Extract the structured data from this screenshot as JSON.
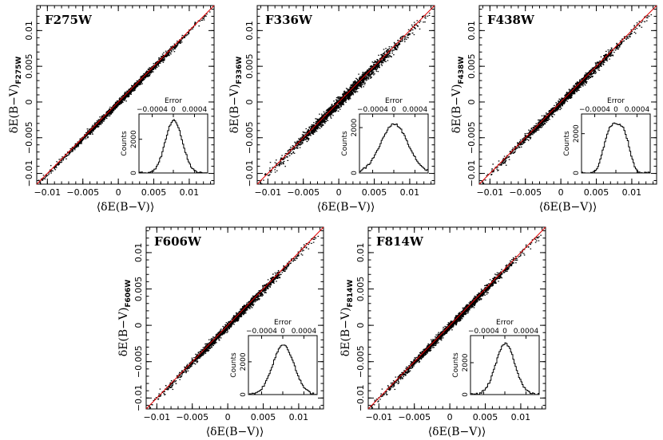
{
  "chart_data": [
    {
      "type": "scatter",
      "filter": "F275W",
      "xlabel": "⟨δE(B−V)⟩",
      "ylabel_main": "δE(B−V)",
      "ylabel_sub": "F275W",
      "xlim": [
        -0.0115,
        0.0135
      ],
      "ylim": [
        -0.0115,
        0.0135
      ],
      "xticks": [
        {
          "v": -0.01,
          "label": "−0.01"
        },
        {
          "v": -0.005,
          "label": "−0.005"
        },
        {
          "v": 0,
          "label": "0"
        },
        {
          "v": 0.005,
          "label": "0.005"
        },
        {
          "v": 0.01,
          "label": "0.01"
        }
      ],
      "yticks": [
        {
          "v": -0.01,
          "label": "−0.01"
        },
        {
          "v": -0.005,
          "label": "−0.005"
        },
        {
          "v": 0,
          "label": "0"
        },
        {
          "v": 0.005,
          "label": "0.005"
        },
        {
          "v": 0.01,
          "label": "0.01"
        }
      ],
      "scatter_sigma": 0.00018,
      "reference_line": {
        "slope": 1,
        "intercept": 0,
        "color": "#e00000"
      },
      "inset": {
        "type": "histogram",
        "title": "Error",
        "xlabel": "Error",
        "ylabel": "Counts",
        "xlim": [
          -0.00065,
          0.00065
        ],
        "ylim": [
          0,
          3500
        ],
        "xticks": [
          {
            "v": -0.0004,
            "label": "−0.0004"
          },
          {
            "v": 0,
            "label": "0"
          },
          {
            "v": 0.0004,
            "label": "0.0004"
          }
        ],
        "yticks": [
          {
            "v": 0,
            "label": "0"
          },
          {
            "v": 2000,
            "label": "2000"
          }
        ],
        "peak": 3150,
        "sigma": 0.00016,
        "shape": "gaussian"
      }
    },
    {
      "type": "scatter",
      "filter": "F336W",
      "xlabel": "⟨δE(B−V)⟩",
      "ylabel_main": "δE(B−V)",
      "ylabel_sub": "F336W",
      "xlim": [
        -0.0115,
        0.0135
      ],
      "ylim": [
        -0.0115,
        0.0135
      ],
      "xticks": [
        {
          "v": -0.01,
          "label": "−0.01"
        },
        {
          "v": -0.005,
          "label": "−0.005"
        },
        {
          "v": 0,
          "label": "0"
        },
        {
          "v": 0.005,
          "label": "0.005"
        },
        {
          "v": 0.01,
          "label": "0.01"
        }
      ],
      "yticks": [
        {
          "v": -0.01,
          "label": "−0.01"
        },
        {
          "v": -0.005,
          "label": "−0.005"
        },
        {
          "v": 0,
          "label": "0"
        },
        {
          "v": 0.005,
          "label": "0.005"
        },
        {
          "v": 0.01,
          "label": "0.01"
        }
      ],
      "scatter_sigma": 0.00032,
      "reference_line": {
        "slope": 1,
        "intercept": 0,
        "color": "#e00000"
      },
      "inset": {
        "type": "histogram",
        "title": "Error",
        "xlabel": "Error",
        "ylabel": "Counts",
        "xlim": [
          -0.00065,
          0.00065
        ],
        "ylim": [
          0,
          2600
        ],
        "xticks": [
          {
            "v": -0.0004,
            "label": "−0.0004"
          },
          {
            "v": 0,
            "label": "0"
          },
          {
            "v": 0.0004,
            "label": "0.0004"
          }
        ],
        "yticks": [
          {
            "v": 0,
            "label": "0"
          },
          {
            "v": 2000,
            "label": "2000"
          }
        ],
        "peak": 2150,
        "sigma": 0.00026,
        "shape": "gaussian"
      }
    },
    {
      "type": "scatter",
      "filter": "F438W",
      "xlabel": "⟨δE(B−V)⟩",
      "ylabel_main": "δE(B−V)",
      "ylabel_sub": "F438W",
      "xlim": [
        -0.0115,
        0.0135
      ],
      "ylim": [
        -0.0115,
        0.0135
      ],
      "xticks": [
        {
          "v": -0.01,
          "label": "−0.01"
        },
        {
          "v": -0.005,
          "label": "−0.005"
        },
        {
          "v": 0,
          "label": "0"
        },
        {
          "v": 0.005,
          "label": "0.005"
        },
        {
          "v": 0.01,
          "label": "0.01"
        }
      ],
      "yticks": [
        {
          "v": -0.01,
          "label": "−0.01"
        },
        {
          "v": -0.005,
          "label": "−0.005"
        },
        {
          "v": 0,
          "label": "0"
        },
        {
          "v": 0.005,
          "label": "0.005"
        },
        {
          "v": 0.01,
          "label": "0.01"
        }
      ],
      "scatter_sigma": 0.00024,
      "reference_line": {
        "slope": 1,
        "intercept": 0,
        "color": "#e00000"
      },
      "inset": {
        "type": "histogram",
        "title": "Error",
        "xlabel": "Error",
        "ylabel": "Counts",
        "xlim": [
          -0.00065,
          0.00065
        ],
        "ylim": [
          0,
          3000
        ],
        "xticks": [
          {
            "v": -0.0004,
            "label": "−0.0004"
          },
          {
            "v": 0,
            "label": "0"
          },
          {
            "v": 0.0004,
            "label": "0.0004"
          }
        ],
        "yticks": [
          {
            "v": 0,
            "label": "0"
          },
          {
            "v": 2000,
            "label": "2000"
          }
        ],
        "peak": 2500,
        "sigma": 0.00024,
        "shape": "flat-top"
      }
    },
    {
      "type": "scatter",
      "filter": "F606W",
      "xlabel": "⟨δE(B−V)⟩",
      "ylabel_main": "δE(B−V)",
      "ylabel_sub": "F606W",
      "xlim": [
        -0.0115,
        0.0135
      ],
      "ylim": [
        -0.0115,
        0.0135
      ],
      "xticks": [
        {
          "v": -0.01,
          "label": "−0.01"
        },
        {
          "v": -0.005,
          "label": "−0.005"
        },
        {
          "v": 0,
          "label": "0"
        },
        {
          "v": 0.005,
          "label": "0.005"
        },
        {
          "v": 0.01,
          "label": "0.01"
        }
      ],
      "yticks": [
        {
          "v": -0.01,
          "label": "−0.01"
        },
        {
          "v": -0.005,
          "label": "−0.005"
        },
        {
          "v": 0,
          "label": "0"
        },
        {
          "v": 0.005,
          "label": "0.005"
        },
        {
          "v": 0.01,
          "label": "0.01"
        }
      ],
      "scatter_sigma": 0.00022,
      "reference_line": {
        "slope": 1,
        "intercept": 0,
        "color": "#e00000"
      },
      "inset": {
        "type": "histogram",
        "title": "Error",
        "xlabel": "Error",
        "ylabel": "Counts",
        "xlim": [
          -0.00065,
          0.00065
        ],
        "ylim": [
          0,
          3600
        ],
        "xticks": [
          {
            "v": -0.0004,
            "label": "−0.0004"
          },
          {
            "v": 0,
            "label": "0"
          },
          {
            "v": 0.0004,
            "label": "0.0004"
          }
        ],
        "yticks": [
          {
            "v": 0,
            "label": "0"
          },
          {
            "v": 2000,
            "label": "2000"
          }
        ],
        "peak": 3050,
        "sigma": 0.0002,
        "shape": "gaussian"
      }
    },
    {
      "type": "scatter",
      "filter": "F814W",
      "xlabel": "⟨δE(B−V)⟩",
      "ylabel_main": "δE(B−V)",
      "ylabel_sub": "F814W",
      "xlim": [
        -0.0115,
        0.0135
      ],
      "ylim": [
        -0.0115,
        0.0135
      ],
      "xticks": [
        {
          "v": -0.01,
          "label": "−0.01"
        },
        {
          "v": -0.005,
          "label": "−0.005"
        },
        {
          "v": 0,
          "label": "0"
        },
        {
          "v": 0.005,
          "label": "0.005"
        },
        {
          "v": 0.01,
          "label": "0.01"
        }
      ],
      "yticks": [
        {
          "v": -0.01,
          "label": "−0.01"
        },
        {
          "v": -0.005,
          "label": "−0.005"
        },
        {
          "v": 0,
          "label": "0"
        },
        {
          "v": 0.005,
          "label": "0.005"
        },
        {
          "v": 0.01,
          "label": "0.01"
        }
      ],
      "scatter_sigma": 0.00022,
      "reference_line": {
        "slope": 1,
        "intercept": 0,
        "color": "#e00000"
      },
      "inset": {
        "type": "histogram",
        "title": "Error",
        "xlabel": "Error",
        "ylabel": "Counts",
        "xlim": [
          -0.00065,
          0.00065
        ],
        "ylim": [
          0,
          3700
        ],
        "xticks": [
          {
            "v": -0.0004,
            "label": "−0.0004"
          },
          {
            "v": 0,
            "label": "0"
          },
          {
            "v": 0.0004,
            "label": "0.0004"
          }
        ],
        "yticks": [
          {
            "v": 0,
            "label": "0"
          },
          {
            "v": 2000,
            "label": "2000"
          }
        ],
        "peak": 3200,
        "sigma": 0.00018,
        "shape": "gaussian"
      }
    }
  ]
}
